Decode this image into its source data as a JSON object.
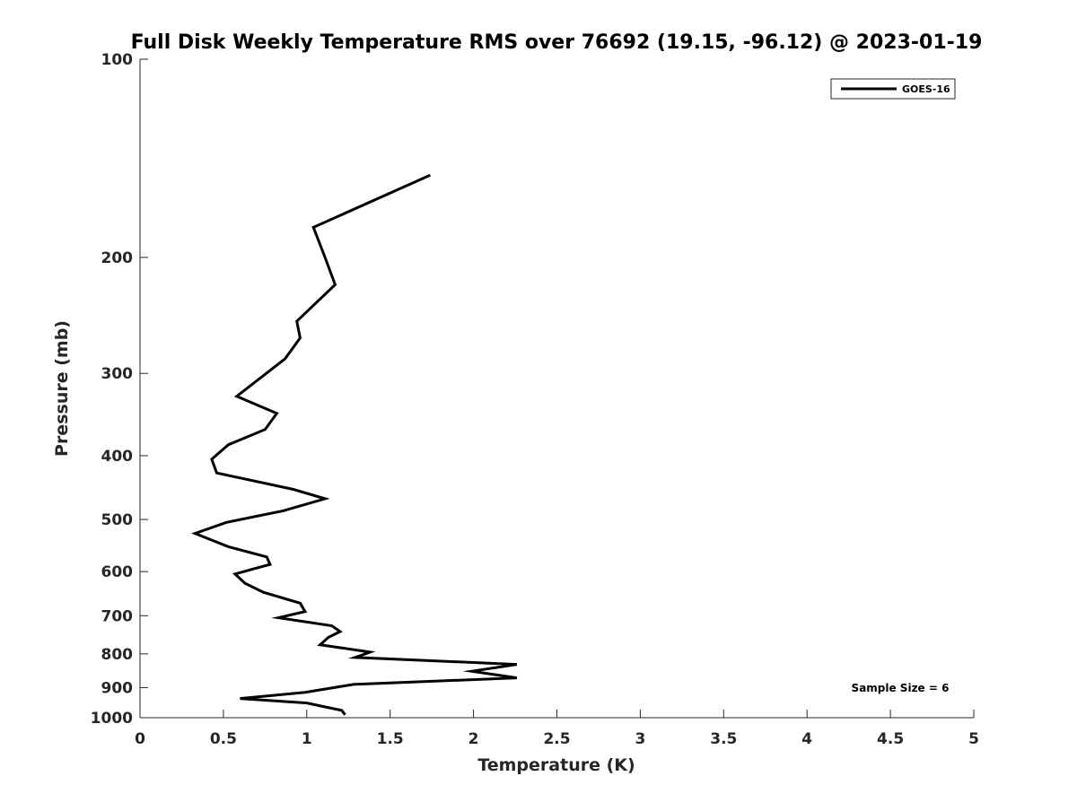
{
  "chart_data": {
    "type": "line",
    "title": "Full Disk Weekly Temperature RMS over 76692 (19.15, -96.12) @ 2023-01-19",
    "xlabel": "Temperature (K)",
    "ylabel": "Pressure (mb)",
    "xlim": [
      0,
      5
    ],
    "ylim": [
      100,
      1000
    ],
    "y_scale": "log",
    "y_reversed": true,
    "grid": false,
    "legend_position": "top-right",
    "x_ticks": [
      0,
      0.5,
      1,
      1.5,
      2,
      2.5,
      3,
      3.5,
      4,
      4.5,
      5
    ],
    "x_tick_labels": [
      "0",
      "0.5",
      "1",
      "1.5",
      "2",
      "2.5",
      "3",
      "3.5",
      "4",
      "4.5",
      "5"
    ],
    "y_ticks": [
      100,
      200,
      300,
      400,
      500,
      600,
      700,
      800,
      900,
      1000
    ],
    "y_tick_labels": [
      "100",
      "200",
      "300",
      "400",
      "500",
      "600",
      "700",
      "800",
      "900",
      "1000"
    ],
    "annotation": "Sample Size = 6",
    "series": [
      {
        "name": "GOES-16",
        "color": "#000000",
        "points": [
          [
            1.74,
            150
          ],
          [
            1.04,
            180
          ],
          [
            1.11,
            200
          ],
          [
            1.17,
            220
          ],
          [
            0.94,
            250
          ],
          [
            0.96,
            265
          ],
          [
            0.87,
            285
          ],
          [
            0.58,
            325
          ],
          [
            0.82,
            345
          ],
          [
            0.75,
            365
          ],
          [
            0.53,
            385
          ],
          [
            0.43,
            405
          ],
          [
            0.46,
            425
          ],
          [
            0.92,
            450
          ],
          [
            1.11,
            465
          ],
          [
            0.86,
            485
          ],
          [
            0.52,
            505
          ],
          [
            0.33,
            525
          ],
          [
            0.53,
            550
          ],
          [
            0.76,
            570
          ],
          [
            0.78,
            585
          ],
          [
            0.57,
            605
          ],
          [
            0.63,
            625
          ],
          [
            0.74,
            645
          ],
          [
            0.96,
            670
          ],
          [
            0.99,
            690
          ],
          [
            0.83,
            705
          ],
          [
            1.15,
            725
          ],
          [
            1.2,
            740
          ],
          [
            1.13,
            755
          ],
          [
            1.08,
            775
          ],
          [
            1.38,
            795
          ],
          [
            1.29,
            810
          ],
          [
            2.26,
            830
          ],
          [
            1.99,
            850
          ],
          [
            2.26,
            870
          ],
          [
            1.28,
            890
          ],
          [
            0.99,
            915
          ],
          [
            0.6,
            935
          ],
          [
            1.0,
            950
          ],
          [
            1.21,
            975
          ],
          [
            1.23,
            990
          ]
        ]
      }
    ]
  }
}
